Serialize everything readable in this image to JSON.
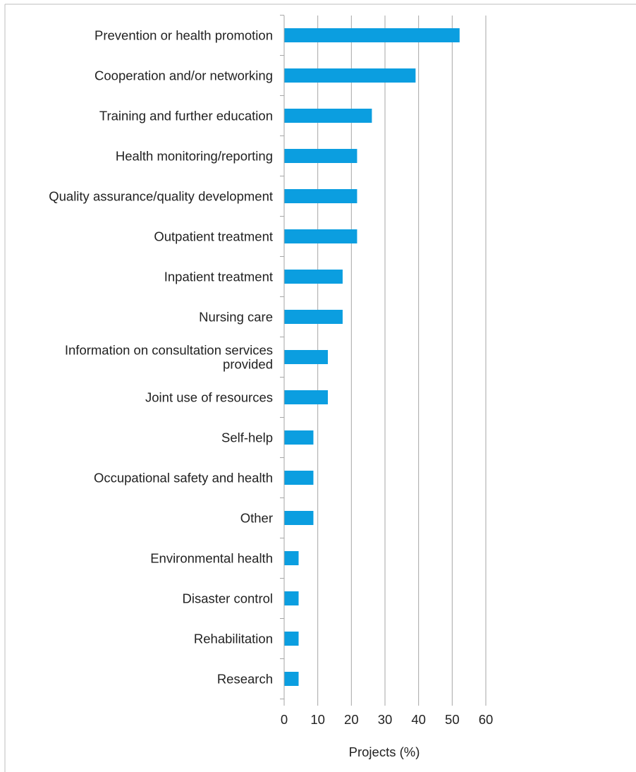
{
  "chart_data": {
    "type": "bar",
    "orientation": "horizontal",
    "title": "",
    "xlabel": "Projects (%)",
    "ylabel": "",
    "xlim": [
      0,
      60
    ],
    "xticks": [
      0,
      10,
      20,
      30,
      40,
      50,
      60
    ],
    "grid": "vertical",
    "categories": [
      "Prevention or health promotion",
      "Cooperation and/or networking",
      "Training and further education",
      "Health monitoring/reporting",
      "Quality assurance/quality development",
      "Outpatient treatment",
      "Inpatient treatment",
      "Nursing care",
      "Information on consultation services provided",
      "Joint use of resources",
      "Self-help",
      "Occupational safety and health",
      "Other",
      "Environmental health",
      "Disaster control",
      "Rehabilitation",
      "Research"
    ],
    "category_lines": [
      [
        "Prevention or health promotion"
      ],
      [
        "Cooperation and/or networking"
      ],
      [
        "Training and further education"
      ],
      [
        "Health monitoring/reporting"
      ],
      [
        "Quality assurance/quality development"
      ],
      [
        "Outpatient treatment"
      ],
      [
        "Inpatient treatment"
      ],
      [
        "Nursing care"
      ],
      [
        "Information on consultation services",
        "provided"
      ],
      [
        "Joint use of resources"
      ],
      [
        "Self-help"
      ],
      [
        "Occupational safety and health"
      ],
      [
        "Other"
      ],
      [
        "Environmental health"
      ],
      [
        "Disaster control"
      ],
      [
        "Rehabilitation"
      ],
      [
        "Research"
      ]
    ],
    "values": [
      52.2,
      39.1,
      26.1,
      21.7,
      21.7,
      21.7,
      17.4,
      17.4,
      13.0,
      13.0,
      8.7,
      8.7,
      8.7,
      4.3,
      4.3,
      4.3,
      4.3
    ],
    "colors": {
      "bar": "#0b9ee0",
      "grid": "#a6a6a6",
      "axis": "#a6a6a6",
      "frame": "#bdbdbd"
    }
  }
}
